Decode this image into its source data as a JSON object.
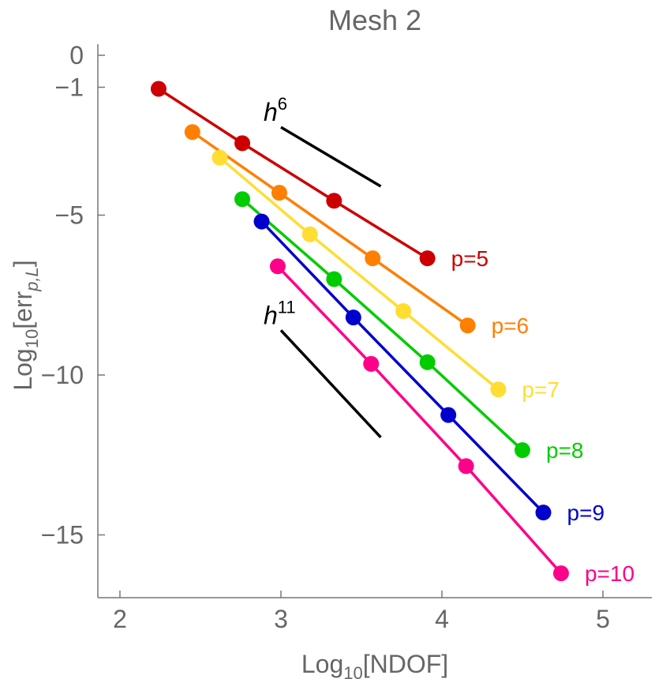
{
  "chart_data": {
    "type": "line",
    "title": "Mesh 2",
    "xlabel": {
      "prefix": "Log",
      "sub": "10",
      "suffix": "[NDOF]"
    },
    "ylabel": {
      "prefix": "Log",
      "sub": "10",
      "mid": "[err",
      "sub2": "p,L",
      "suffix": "]"
    },
    "xlim": [
      1.85,
      5.3
    ],
    "ylim": [
      -17.0,
      0.4
    ],
    "x_ticks": [
      2,
      3,
      4,
      5
    ],
    "x_tick_labels": [
      "2",
      "3",
      "4",
      "5"
    ],
    "y_ticks": [
      0,
      -1,
      -5,
      -10,
      -15
    ],
    "y_tick_labels": [
      "0",
      "−1",
      "−5",
      "−10",
      "−15"
    ],
    "grid": false,
    "series": [
      {
        "name": "p=5",
        "color": "#cc0000",
        "x": [
          2.24,
          2.76,
          3.33,
          3.91
        ],
        "y": [
          -1.05,
          -2.75,
          -4.55,
          -6.35
        ]
      },
      {
        "name": "p=6",
        "color": "#ff7f00",
        "x": [
          2.45,
          2.99,
          3.57,
          4.16
        ],
        "y": [
          -2.4,
          -4.3,
          -6.35,
          -8.45
        ]
      },
      {
        "name": "p=7",
        "color": "#ffdd33",
        "x": [
          2.62,
          3.18,
          3.76,
          4.35
        ],
        "y": [
          -3.2,
          -5.6,
          -8.0,
          -10.45
        ]
      },
      {
        "name": "p=8",
        "color": "#00cc00",
        "x": [
          2.76,
          3.33,
          3.91,
          4.5
        ],
        "y": [
          -4.5,
          -7.0,
          -9.6,
          -12.35
        ]
      },
      {
        "name": "p=9",
        "color": "#0000cc",
        "x": [
          2.88,
          3.45,
          4.04,
          4.63
        ],
        "y": [
          -5.2,
          -8.2,
          -11.25,
          -14.3
        ]
      },
      {
        "name": "p=10",
        "color": "#ff0088",
        "x": [
          2.98,
          3.56,
          4.15,
          4.74
        ],
        "y": [
          -6.6,
          -9.65,
          -12.85,
          -16.2
        ]
      }
    ],
    "slope_markers": [
      {
        "base": "h",
        "exp": "6",
        "x": [
          3.0,
          3.62
        ],
        "y": [
          -2.25,
          -4.1
        ]
      },
      {
        "base": "h",
        "exp": "11",
        "x": [
          3.0,
          3.62
        ],
        "y": [
          -8.6,
          -11.95
        ]
      }
    ]
  }
}
